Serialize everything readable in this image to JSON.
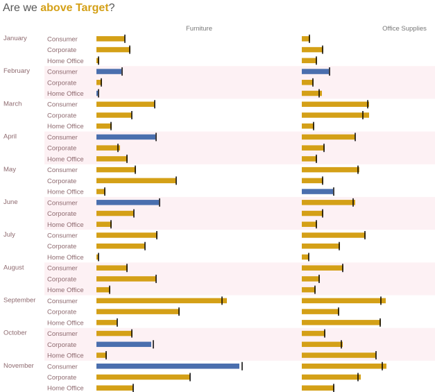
{
  "title": {
    "prefix": "Are we ",
    "highlight": "above Target",
    "suffix": "?"
  },
  "colors": {
    "above": "#d4a017",
    "below": "#4a6fae",
    "band": "#fdf1f4",
    "target": "#000000"
  },
  "chart_data": {
    "type": "bar",
    "orientation": "horizontal",
    "subtype": "bullet",
    "columns": [
      "Furniture",
      "Office Supplies"
    ],
    "months": [
      "January",
      "February",
      "March",
      "April",
      "May",
      "June",
      "July",
      "August",
      "September",
      "October",
      "November"
    ],
    "segments": [
      "Consumer",
      "Corporate",
      "Home Office"
    ],
    "grid": false,
    "rows": [
      {
        "month": "January",
        "segment": "Consumer",
        "Furniture": [
          41,
          41
        ],
        "Office Supplies": [
          12,
          11
        ]
      },
      {
        "month": "January",
        "segment": "Corporate",
        "Furniture": [
          49,
          48
        ],
        "Office Supplies": [
          31,
          30
        ]
      },
      {
        "month": "January",
        "segment": "Home Office",
        "Furniture": [
          4,
          3
        ],
        "Office Supplies": [
          22,
          21
        ]
      },
      {
        "month": "February",
        "segment": "Consumer",
        "Furniture": [
          36,
          37
        ],
        "Office Supplies": [
          39,
          40
        ]
      },
      {
        "month": "February",
        "segment": "Corporate",
        "Furniture": [
          8,
          7
        ],
        "Office Supplies": [
          17,
          16
        ]
      },
      {
        "month": "February",
        "segment": "Home Office",
        "Furniture": [
          2,
          3
        ],
        "Office Supplies": [
          29,
          25
        ]
      },
      {
        "month": "March",
        "segment": "Consumer",
        "Furniture": [
          84,
          84
        ],
        "Office Supplies": [
          97,
          95
        ]
      },
      {
        "month": "March",
        "segment": "Corporate",
        "Furniture": [
          51,
          51
        ],
        "Office Supplies": [
          97,
          88
        ]
      },
      {
        "month": "March",
        "segment": "Home Office",
        "Furniture": [
          22,
          21
        ],
        "Office Supplies": [
          18,
          17
        ]
      },
      {
        "month": "April",
        "segment": "Consumer",
        "Furniture": [
          85,
          86
        ],
        "Office Supplies": [
          77,
          77
        ]
      },
      {
        "month": "April",
        "segment": "Corporate",
        "Furniture": [
          34,
          31
        ],
        "Office Supplies": [
          33,
          32
        ]
      },
      {
        "month": "April",
        "segment": "Home Office",
        "Furniture": [
          45,
          44
        ],
        "Office Supplies": [
          22,
          21
        ]
      },
      {
        "month": "May",
        "segment": "Consumer",
        "Furniture": [
          57,
          56
        ],
        "Office Supplies": [
          83,
          81
        ]
      },
      {
        "month": "May",
        "segment": "Corporate",
        "Furniture": [
          115,
          115
        ],
        "Office Supplies": [
          31,
          30
        ]
      },
      {
        "month": "May",
        "segment": "Home Office",
        "Furniture": [
          13,
          12
        ],
        "Office Supplies": [
          45,
          46
        ]
      },
      {
        "month": "June",
        "segment": "Consumer",
        "Furniture": [
          90,
          91
        ],
        "Office Supplies": [
          77,
          74
        ]
      },
      {
        "month": "June",
        "segment": "Corporate",
        "Furniture": [
          54,
          54
        ],
        "Office Supplies": [
          31,
          30
        ]
      },
      {
        "month": "June",
        "segment": "Home Office",
        "Furniture": [
          22,
          21
        ],
        "Office Supplies": [
          22,
          21
        ]
      },
      {
        "month": "July",
        "segment": "Consumer",
        "Furniture": [
          88,
          87
        ],
        "Office Supplies": [
          92,
          91
        ]
      },
      {
        "month": "July",
        "segment": "Corporate",
        "Furniture": [
          70,
          70
        ],
        "Office Supplies": [
          55,
          54
        ]
      },
      {
        "month": "July",
        "segment": "Home Office",
        "Furniture": [
          3,
          3
        ],
        "Office Supplies": [
          10,
          10
        ]
      },
      {
        "month": "August",
        "segment": "Consumer",
        "Furniture": [
          45,
          44
        ],
        "Office Supplies": [
          60,
          59
        ]
      },
      {
        "month": "August",
        "segment": "Corporate",
        "Furniture": [
          86,
          86
        ],
        "Office Supplies": [
          26,
          25
        ]
      },
      {
        "month": "August",
        "segment": "Home Office",
        "Furniture": [
          20,
          19
        ],
        "Office Supplies": [
          20,
          19
        ]
      },
      {
        "month": "September",
        "segment": "Consumer",
        "Furniture": [
          188,
          181
        ],
        "Office Supplies": [
          121,
          114
        ]
      },
      {
        "month": "September",
        "segment": "Corporate",
        "Furniture": [
          120,
          119
        ],
        "Office Supplies": [
          54,
          53
        ]
      },
      {
        "month": "September",
        "segment": "Home Office",
        "Furniture": [
          30,
          30
        ],
        "Office Supplies": [
          114,
          113
        ]
      },
      {
        "month": "October",
        "segment": "Consumer",
        "Furniture": [
          52,
          51
        ],
        "Office Supplies": [
          34,
          33
        ]
      },
      {
        "month": "October",
        "segment": "Corporate",
        "Furniture": [
          79,
          82
        ],
        "Office Supplies": [
          59,
          57
        ]
      },
      {
        "month": "October",
        "segment": "Home Office",
        "Furniture": [
          15,
          14
        ],
        "Office Supplies": [
          107,
          107
        ]
      },
      {
        "month": "November",
        "segment": "Consumer",
        "Furniture": [
          206,
          210
        ],
        "Office Supplies": [
          122,
          116
        ]
      },
      {
        "month": "November",
        "segment": "Corporate",
        "Furniture": [
          135,
          135
        ],
        "Office Supplies": [
          85,
          81
        ]
      },
      {
        "month": "November",
        "segment": "Home Office",
        "Furniture": [
          53,
          53
        ],
        "Office Supplies": [
          47,
          46
        ]
      }
    ]
  }
}
